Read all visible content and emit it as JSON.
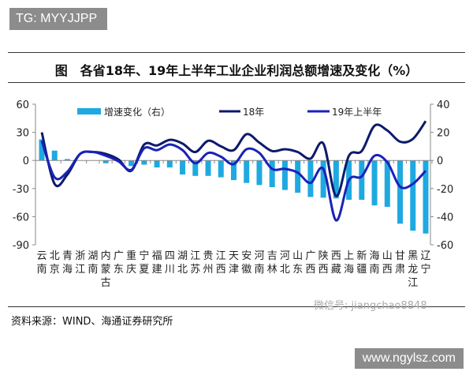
{
  "watermark_top": "TG: MYYJJPP",
  "title": "图　各省18年、19年上半年工业企业利润总额增速及变化（%）",
  "source": "资料来源：WIND、海通证券研究所",
  "watermark_wechat": "微信号: jiangchao8848",
  "watermark_url": "www.ngylsz.com",
  "chart_data": {
    "type": "bar+line",
    "categories": [
      "云南",
      "北京",
      "青海",
      "浙江",
      "湖南",
      "内蒙古",
      "广东",
      "重庆",
      "宁夏",
      "福建",
      "四川",
      "湖北",
      "江苏",
      "贵州",
      "江西",
      "天津",
      "安徽",
      "河南",
      "吉林",
      "河北",
      "山东",
      "广西",
      "陕西",
      "西藏",
      "上海",
      "新疆",
      "海南",
      "山西",
      "甘肃",
      "黑龙江",
      "辽宁"
    ],
    "left_axis": {
      "ylim": [
        -90,
        60
      ],
      "ticks": [
        "60",
        "30",
        "0",
        "-30",
        "-60",
        "-90"
      ]
    },
    "right_axis": {
      "ylim": [
        -60,
        40
      ],
      "ticks": [
        "40",
        "20",
        "0",
        "-20",
        "-40",
        "-60"
      ]
    },
    "series": [
      {
        "name": "增速变化（右）",
        "type": "bar",
        "axis": "right",
        "color": "#1fa9e1",
        "values": [
          15,
          7,
          1,
          0,
          0,
          -2,
          0,
          -4,
          -3,
          -5,
          -5,
          -10,
          -11,
          -11,
          -12,
          -14,
          -16,
          -17.5,
          -19,
          -21,
          -23,
          -26,
          -26.5,
          -27,
          -28,
          -28,
          -32,
          -33,
          -45,
          -50,
          -52
        ]
      },
      {
        "name": "18年",
        "type": "line",
        "axis": "left",
        "color": "#0d1a6b",
        "values": [
          30,
          -25,
          -15,
          7,
          9,
          7,
          1,
          -11,
          17,
          16,
          22,
          18,
          9,
          21,
          15,
          11,
          28,
          19,
          10,
          12,
          9,
          2,
          18,
          -38,
          5,
          10,
          37,
          32,
          20,
          23,
          42
        ]
      },
      {
        "name": "19年上半年",
        "type": "line",
        "axis": "left",
        "color": "#1a22b8",
        "values": [
          21,
          -18,
          -12,
          7,
          9,
          5,
          -1,
          -10,
          13,
          11,
          17,
          11,
          -3,
          8,
          4,
          -4,
          12,
          8,
          -9,
          -9,
          -13,
          -24,
          -9,
          -64,
          -21,
          -17,
          5,
          -2,
          -28,
          -25,
          -11
        ]
      }
    ]
  }
}
